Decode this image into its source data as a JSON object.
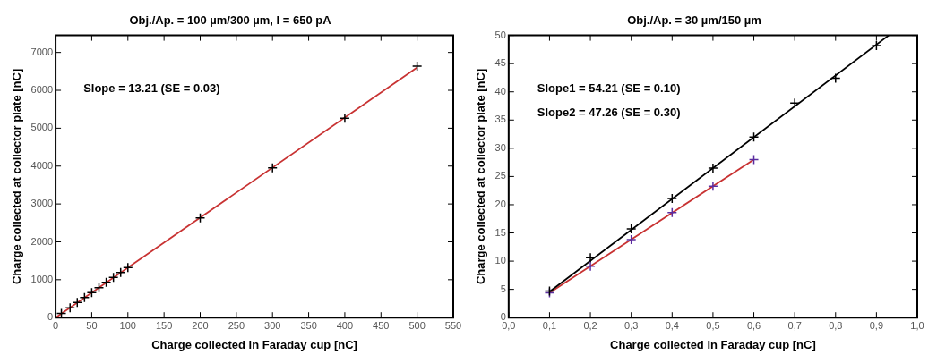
{
  "chart_data": [
    {
      "type": "scatter",
      "title": "Obj./Ap. = 100 µm/300 µm, I = 650 pA",
      "xlabel": "Charge collected in Faraday cup [nC]",
      "ylabel": "Charge collected at collector plate [nC]",
      "annotations": [
        "Slope = 13.21 (SE = 0.03)"
      ],
      "legend": false,
      "grid": false,
      "xlim": [
        0,
        550
      ],
      "xticks": [
        0,
        50,
        100,
        150,
        200,
        250,
        300,
        350,
        400,
        450,
        500,
        550
      ],
      "ylim": [
        0,
        7450
      ],
      "yticks": [
        0,
        1000,
        2000,
        3000,
        4000,
        5000,
        6000,
        7000
      ],
      "series": [
        {
          "type": "scatter",
          "marker": "cross",
          "color": "#000000",
          "x": [
            8,
            20,
            30,
            40,
            50,
            60,
            70,
            80,
            90,
            100,
            200,
            300,
            400,
            500
          ],
          "values": [
            110,
            260,
            400,
            530,
            660,
            790,
            930,
            1060,
            1190,
            1320,
            2630,
            3950,
            5260,
            6640
          ]
        },
        {
          "type": "line",
          "marker": "none",
          "color": "#c83232",
          "x": [
            0,
            500
          ],
          "values": [
            0,
            6600
          ]
        }
      ]
    },
    {
      "type": "scatter",
      "title": "Obj./Ap. = 30 µm/150 µm",
      "xlabel": "Charge collected in Faraday cup [nC]",
      "ylabel": "Charge collected at collector plate [nC]",
      "annotations": [
        "Slope1 = 54.21 (SE = 0.10)",
        "Slope2 = 47.26 (SE = 0.30)"
      ],
      "legend": false,
      "grid": false,
      "xlim": [
        0,
        1
      ],
      "xticks": [
        {
          "value": 0,
          "label": "0,0"
        },
        {
          "value": 0.1,
          "label": "0,1"
        },
        {
          "value": 0.2,
          "label": "0,2"
        },
        {
          "value": 0.3,
          "label": "0,3"
        },
        {
          "value": 0.4,
          "label": "0,4"
        },
        {
          "value": 0.5,
          "label": "0,5"
        },
        {
          "value": 0.6,
          "label": "0,6"
        },
        {
          "value": 0.7,
          "label": "0,7"
        },
        {
          "value": 0.8,
          "label": "0,8"
        },
        {
          "value": 0.9,
          "label": "0,9"
        },
        {
          "value": 1,
          "label": "1,0"
        }
      ],
      "ylim": [
        0,
        50
      ],
      "yticks": [
        0,
        5,
        10,
        15,
        20,
        25,
        30,
        35,
        40,
        45,
        50
      ],
      "series": [
        {
          "type": "line",
          "marker": "none",
          "color": "#000000",
          "x": [
            0.1,
            0.93
          ],
          "values": [
            4.6,
            50
          ]
        },
        {
          "type": "line",
          "marker": "none",
          "color": "#c83232",
          "x": [
            0.1,
            0.6
          ],
          "values": [
            4.4,
            28.0
          ]
        },
        {
          "type": "scatter",
          "marker": "cross",
          "color": "#000000",
          "x": [
            0.1,
            0.2,
            0.3,
            0.4,
            0.5,
            0.6,
            0.7,
            0.8,
            0.9
          ],
          "values": [
            4.7,
            10.6,
            15.7,
            21.1,
            26.5,
            32.0,
            38.0,
            42.4,
            48.2
          ]
        },
        {
          "type": "scatter",
          "marker": "cross",
          "color": "#5a2ca0",
          "x": [
            0.1,
            0.2,
            0.3,
            0.4,
            0.5,
            0.6
          ],
          "values": [
            4.4,
            9.1,
            13.8,
            18.6,
            23.3,
            28.0
          ]
        }
      ]
    }
  ]
}
